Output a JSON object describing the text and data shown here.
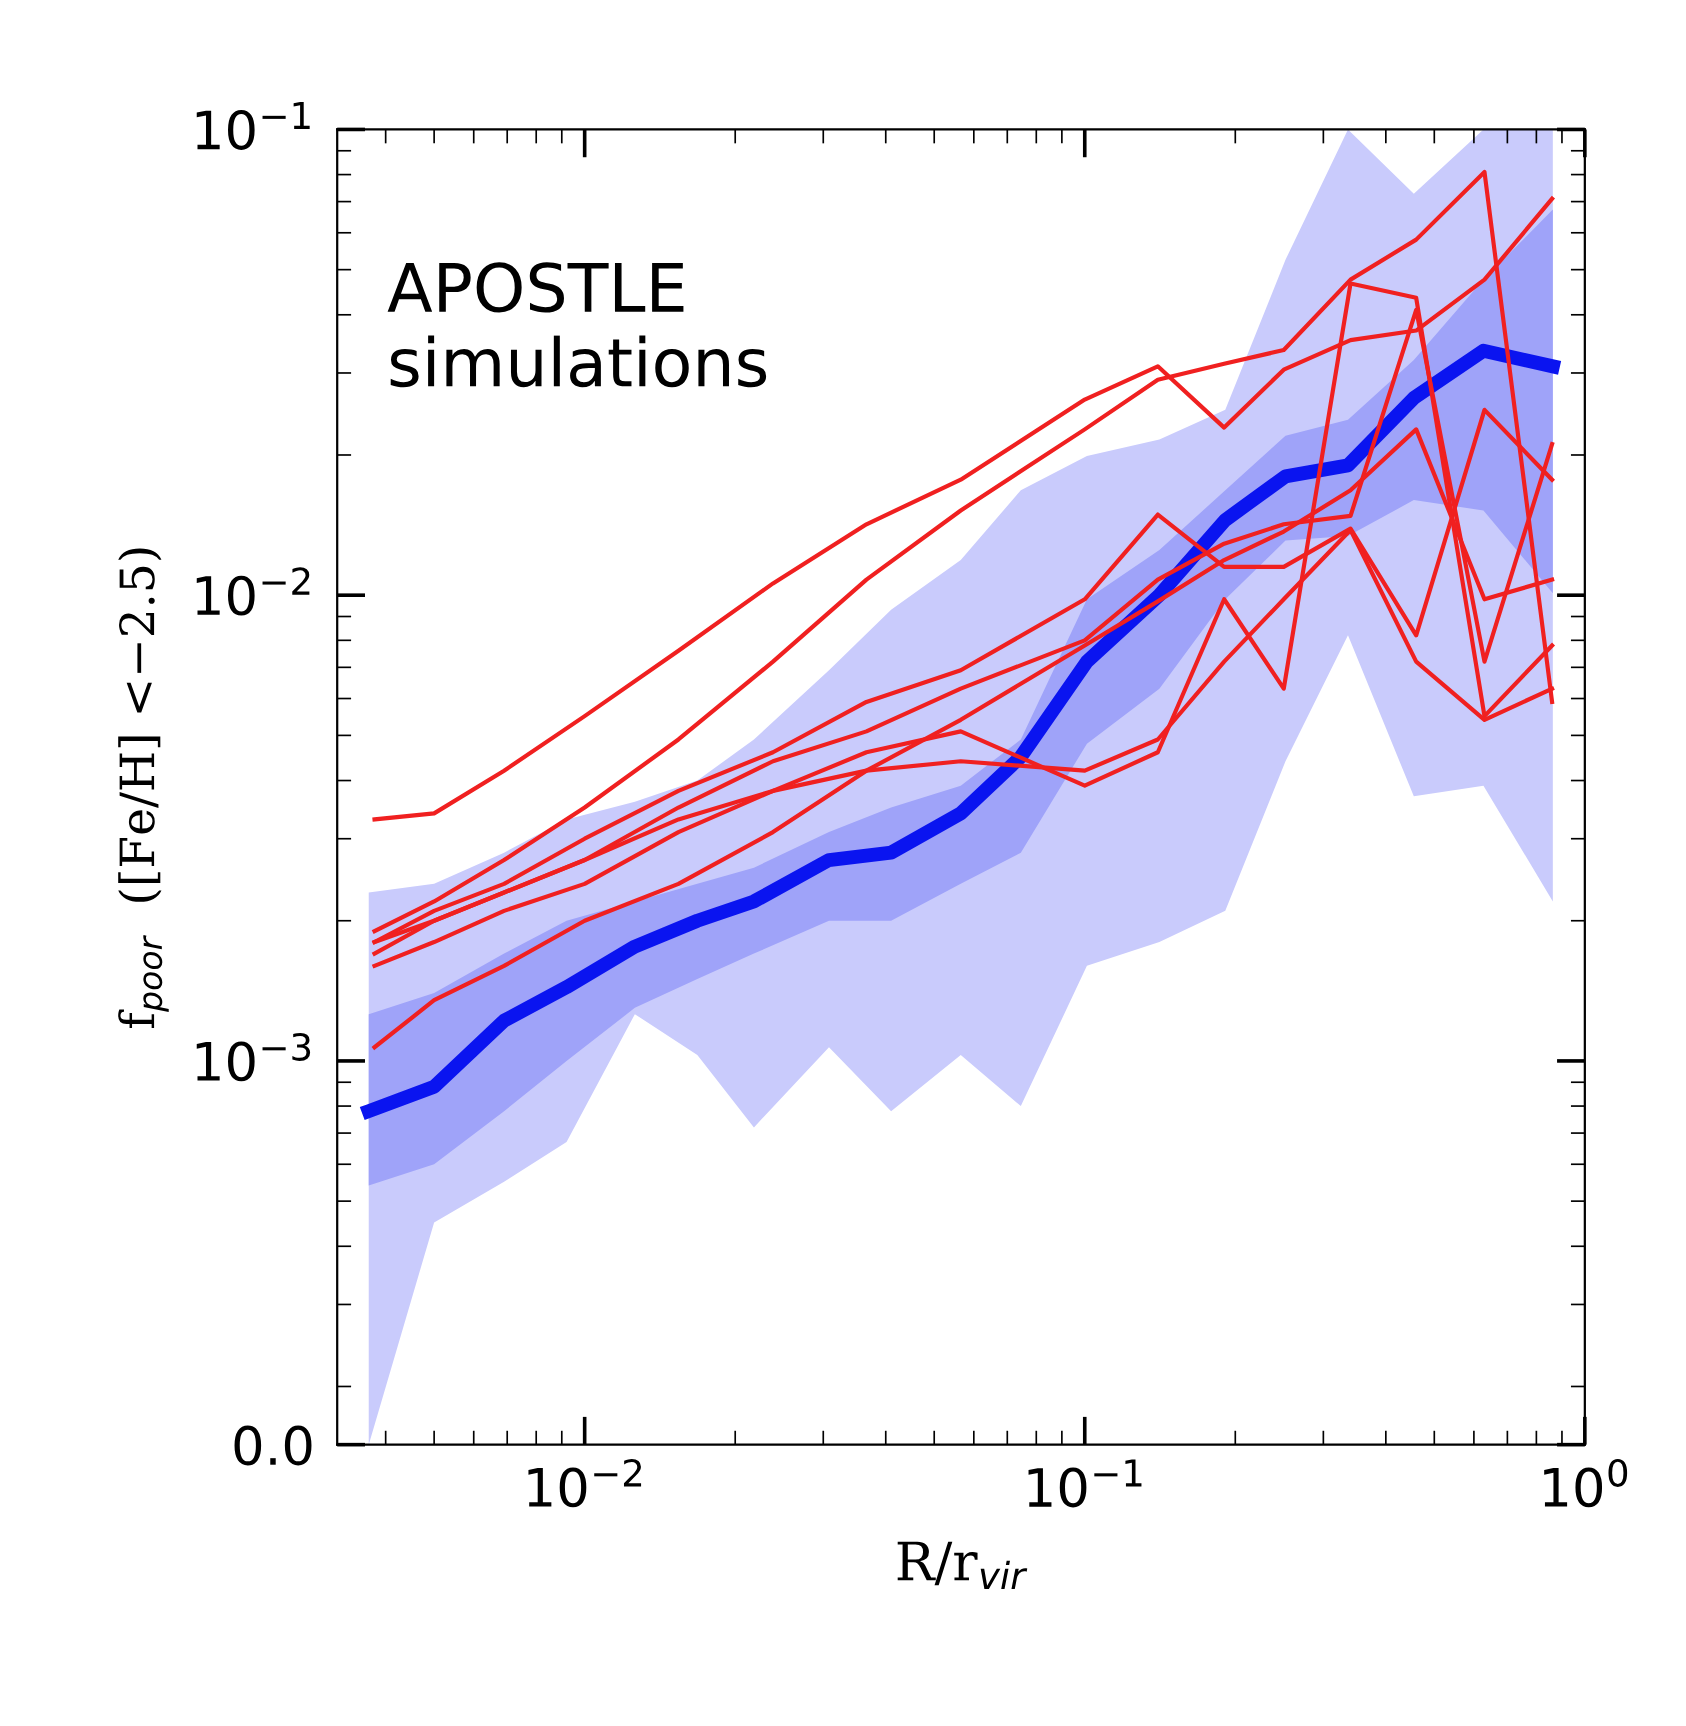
{
  "chart_data": {
    "type": "line",
    "log": "xy",
    "xlabel": "R/r$_{vir}$",
    "ylabel": "f$_{poor}$  ([Fe/H] <−2.5)",
    "annotations": [
      "APOSTLE\nsimulations"
    ],
    "xlim": [
      0.0032,
      1.0
    ],
    "ylim": [
      0.00015,
      0.1
    ],
    "xticks": [
      {
        "value": 0.01,
        "label": "10$^{−2}$"
      },
      {
        "value": 0.1,
        "label": "10$^{−1}$"
      },
      {
        "value": 1.0,
        "label": "10$^{0}$"
      }
    ],
    "yticks": [
      {
        "value": 0.00015,
        "label": "0.0"
      },
      {
        "value": 0.001,
        "label": "10$^{−3}$"
      },
      {
        "value": 0.01,
        "label": "10$^{−2}$"
      },
      {
        "value": 0.1,
        "label": "10$^{−1}$"
      }
    ],
    "grid": false,
    "line_style": "solid",
    "marker": "none",
    "series": [
      {
        "color": "#0a14f0",
        "x": [
          0.0037,
          0.005,
          0.0069,
          0.0092,
          0.0126,
          0.0168,
          0.0218,
          0.0308,
          0.041,
          0.0565,
          0.0745,
          0.101,
          0.141,
          0.191,
          0.252,
          0.336,
          0.455,
          0.627,
          0.863
        ],
        "values": [
          null,
          null,
          null,
          null,
          null,
          null,
          null,
          null,
          null,
          null,
          null,
          null,
          null,
          null,
          null,
          null,
          null,
          null,
          null
        ],
        "lower": [
          0.00015,
          0.00045,
          0.00055,
          0.00067,
          0.00126,
          0.00103,
          0.00072,
          0.00107,
          0.00078,
          0.00103,
          0.0008,
          0.0016,
          0.0018,
          0.0021,
          0.0044,
          0.0082,
          0.0037,
          0.0039,
          0.0022
        ],
        "upper": [
          0.0023,
          0.0024,
          0.0028,
          0.0033,
          0.0036,
          0.004,
          0.0049,
          0.0069,
          0.0093,
          0.0119,
          0.0168,
          0.0199,
          0.0216,
          0.025,
          0.0525,
          0.1,
          0.0728,
          0.1,
          0.1
        ]
      },
      {
        "color": "#0a14f0",
        "x": [
          0.0037,
          0.005,
          0.0069,
          0.0092,
          0.0126,
          0.0168,
          0.0218,
          0.0308,
          0.041,
          0.0565,
          0.0745,
          0.101,
          0.141,
          0.191,
          0.252,
          0.336,
          0.455,
          0.627,
          0.863
        ],
        "values": [
          0.00078,
          0.00088,
          0.00122,
          0.00144,
          0.00176,
          0.002,
          0.0022,
          0.0027,
          0.0028,
          0.0034,
          0.0045,
          0.0072,
          0.01,
          0.0145,
          0.018,
          0.019,
          0.0265,
          0.0335,
          0.031
        ],
        "lower": [
          0.00054,
          0.0006,
          0.00078,
          0.001,
          0.0013,
          0.0015,
          0.0017,
          0.002,
          0.002,
          0.0024,
          0.0028,
          0.0048,
          0.0063,
          0.0098,
          0.0131,
          0.0134,
          0.016,
          0.0152,
          0.0101
        ],
        "upper": [
          0.00126,
          0.0014,
          0.0017,
          0.002,
          0.0022,
          0.0024,
          0.0026,
          0.0031,
          0.0035,
          0.0039,
          0.0049,
          0.0098,
          0.0125,
          0.0168,
          0.022,
          0.0238,
          0.032,
          0.0476,
          0.0673
        ]
      },
      {
        "color": "#f02020",
        "values": [
          0.0033,
          0.0034,
          0.0042,
          0.0055,
          0.0076,
          0.0106,
          0.0142,
          0.0177,
          0.0263,
          0.031,
          0.0229,
          0.0305,
          0.0353,
          0.037,
          0.0476,
          0.071
        ]
      },
      {
        "color": "#f02020",
        "values": [
          0.0019,
          0.0022,
          0.0027,
          0.0035,
          0.0049,
          0.0072,
          0.0108,
          0.0152,
          0.0227,
          0.029,
          0.0314,
          0.0336,
          0.0476,
          0.058,
          0.081,
          0.0059
        ]
      },
      {
        "color": "#f02020",
        "values": [
          0.0018,
          0.0021,
          0.0024,
          0.003,
          0.0038,
          0.0046,
          0.0059,
          0.0069,
          0.0098,
          0.0149,
          0.0115,
          0.0115,
          0.0139,
          0.0082,
          0.025,
          0.0177
        ]
      },
      {
        "color": "#f02020",
        "values": [
          0.0017,
          0.002,
          0.0023,
          0.0027,
          0.0035,
          0.0044,
          0.0051,
          0.0063,
          0.008,
          0.0108,
          0.0129,
          0.0142,
          0.0148,
          0.041,
          0.0072,
          0.0211
        ]
      },
      {
        "color": "#f02020",
        "values": [
          0.0016,
          0.0018,
          0.0021,
          0.0024,
          0.0031,
          0.0038,
          0.0046,
          0.0051,
          0.0039,
          0.0046,
          0.0098,
          0.0063,
          0.0467,
          0.0435,
          0.0055,
          0.0078
        ]
      },
      {
        "color": "#f02020",
        "values": [
          0.00107,
          0.00135,
          0.0016,
          0.002,
          0.0024,
          0.0031,
          0.0042,
          0.0054,
          0.0078,
          0.0097,
          0.0119,
          0.0137,
          0.0168,
          0.0227,
          0.0098,
          0.0108
        ]
      },
      {
        "color": "#f02020",
        "values": [
          0.0018,
          0.002,
          0.0023,
          0.0027,
          0.0033,
          0.0038,
          0.0042,
          0.0044,
          0.0042,
          0.0049,
          0.0072,
          0.0098,
          0.0138,
          0.0072,
          0.0054,
          0.0063
        ]
      }
    ],
    "x": [
      0.0038,
      0.005,
      0.0069,
      0.01,
      0.0154,
      0.0238,
      0.0366,
      0.0565,
      0.1,
      0.14,
      0.19,
      0.25,
      0.34,
      0.46,
      0.63,
      0.86
    ]
  }
}
